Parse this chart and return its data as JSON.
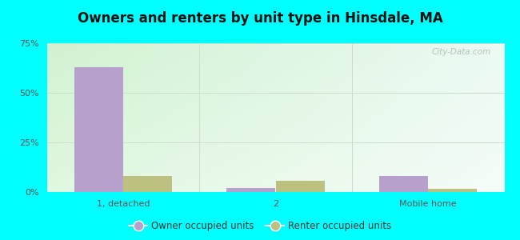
{
  "title": "Owners and renters by unit type in Hinsdale, MA",
  "categories": [
    "1, detached",
    "2",
    "Mobile home"
  ],
  "owner_values": [
    63.0,
    2.0,
    8.0
  ],
  "renter_values": [
    8.0,
    5.5,
    1.5
  ],
  "owner_color": "#b8a0cc",
  "renter_color": "#bcc080",
  "ylim": [
    0,
    75
  ],
  "yticks": [
    0,
    25,
    50,
    75
  ],
  "ytick_labels": [
    "0%",
    "25%",
    "50%",
    "75%"
  ],
  "bar_width": 0.32,
  "legend_labels": [
    "Owner occupied units",
    "Renter occupied units"
  ],
  "watermark": "City-Data.com",
  "outer_bg": "#00ffff",
  "grad_topleft": [
    0.82,
    0.95,
    0.82
  ],
  "grad_topright": [
    0.92,
    0.98,
    0.95
  ],
  "grad_bottomleft": [
    0.88,
    0.97,
    0.88
  ],
  "grad_bottomright": [
    0.96,
    0.99,
    0.97
  ],
  "grid_color": "#ccddcc",
  "tick_color": "#555555",
  "title_fontsize": 12
}
